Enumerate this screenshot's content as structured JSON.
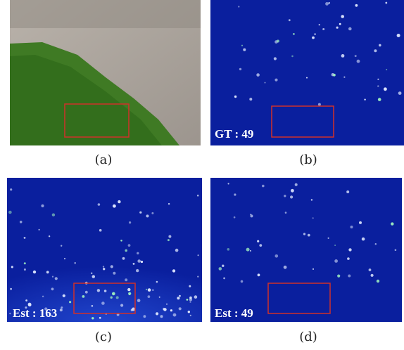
{
  "panels": [
    {
      "caption": "(a)"
    },
    {
      "caption": "(b)",
      "label": "GT : 49"
    },
    {
      "caption": "(c)",
      "label": "Est : 163"
    },
    {
      "caption": "(d)",
      "label": "Est : 49"
    }
  ]
}
